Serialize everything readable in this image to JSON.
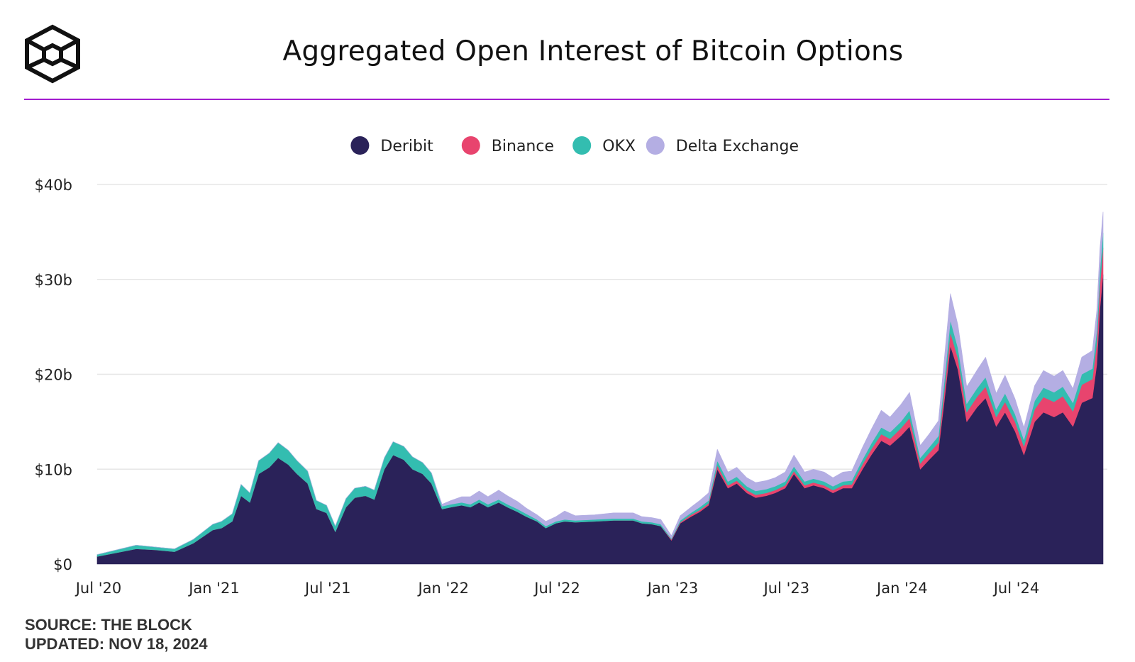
{
  "header": {
    "logo_icon": "the-block-cube-logo-icon",
    "title": "Aggregated Open Interest of Bitcoin Options",
    "accent_color": "#A21CCF"
  },
  "footer": {
    "source": "SOURCE: THE BLOCK",
    "updated": "UPDATED: NOV 18, 2024"
  },
  "chart_data": {
    "type": "area",
    "stacked": true,
    "legend_position": "top-center",
    "grid": "horizontal",
    "ylim": [
      0,
      40
    ],
    "y_ticks": [
      0,
      10,
      20,
      30,
      40
    ],
    "y_tick_labels": [
      "$0",
      "$10b",
      "$20b",
      "$30b",
      "$40b"
    ],
    "x_range": [
      "2020-07-01",
      "2024-11-18"
    ],
    "x_ticks": [
      "2020-07-01",
      "2021-01-01",
      "2021-07-01",
      "2022-01-01",
      "2022-07-01",
      "2023-01-01",
      "2023-07-01",
      "2024-01-01",
      "2024-07-01"
    ],
    "x_tick_labels": [
      "Jul '20",
      "Jan '21",
      "Jul '21",
      "Jan '22",
      "Jul '22",
      "Jan '23",
      "Jul '23",
      "Jan '24",
      "Jul '24"
    ],
    "x": [
      "2020-07-01",
      "2020-08-01",
      "2020-09-01",
      "2020-10-01",
      "2020-11-01",
      "2020-12-01",
      "2021-01-01",
      "2021-01-15",
      "2021-02-01",
      "2021-02-15",
      "2021-03-01",
      "2021-03-15",
      "2021-04-01",
      "2021-04-15",
      "2021-05-01",
      "2021-05-15",
      "2021-06-01",
      "2021-06-15",
      "2021-07-01",
      "2021-07-15",
      "2021-08-01",
      "2021-08-15",
      "2021-09-01",
      "2021-09-15",
      "2021-10-01",
      "2021-10-15",
      "2021-11-01",
      "2021-11-15",
      "2021-12-01",
      "2021-12-15",
      "2022-01-01",
      "2022-01-15",
      "2022-02-01",
      "2022-02-15",
      "2022-03-01",
      "2022-03-15",
      "2022-04-01",
      "2022-04-15",
      "2022-05-01",
      "2022-05-15",
      "2022-06-01",
      "2022-06-15",
      "2022-07-01",
      "2022-07-15",
      "2022-08-01",
      "2022-09-01",
      "2022-10-01",
      "2022-11-01",
      "2022-11-15",
      "2022-12-01",
      "2022-12-15",
      "2023-01-01",
      "2023-01-15",
      "2023-02-01",
      "2023-02-15",
      "2023-03-01",
      "2023-03-15",
      "2023-04-01",
      "2023-04-15",
      "2023-05-01",
      "2023-05-15",
      "2023-06-01",
      "2023-06-15",
      "2023-07-01",
      "2023-07-15",
      "2023-08-01",
      "2023-08-15",
      "2023-09-01",
      "2023-09-15",
      "2023-10-01",
      "2023-10-15",
      "2023-11-01",
      "2023-11-15",
      "2023-12-01",
      "2023-12-15",
      "2024-01-01",
      "2024-01-15",
      "2024-02-01",
      "2024-02-15",
      "2024-03-01",
      "2024-03-10",
      "2024-03-20",
      "2024-04-01",
      "2024-04-15",
      "2024-05-01",
      "2024-05-15",
      "2024-06-01",
      "2024-06-15",
      "2024-07-01",
      "2024-07-15",
      "2024-08-01",
      "2024-08-15",
      "2024-09-01",
      "2024-09-15",
      "2024-10-01",
      "2024-10-15",
      "2024-11-01",
      "2024-11-08",
      "2024-11-13",
      "2024-11-18"
    ],
    "series": [
      {
        "name": "Deribit",
        "color": "#2A2259",
        "values": [
          0.8,
          1.2,
          1.6,
          1.5,
          1.3,
          2.2,
          3.6,
          3.8,
          4.5,
          7.2,
          6.5,
          9.5,
          10.2,
          11.2,
          10.5,
          9.5,
          8.5,
          5.8,
          5.4,
          3.4,
          6.0,
          7.0,
          7.2,
          6.8,
          10.0,
          11.5,
          11.0,
          10.0,
          9.5,
          8.5,
          5.8,
          6.0,
          6.2,
          6.0,
          6.5,
          6.0,
          6.5,
          6.0,
          5.5,
          5.0,
          4.5,
          3.8,
          4.3,
          4.5,
          4.4,
          4.5,
          4.6,
          4.6,
          4.3,
          4.2,
          4.0,
          2.5,
          4.3,
          5.0,
          5.5,
          6.2,
          10.0,
          8.0,
          8.5,
          7.5,
          7.0,
          7.2,
          7.5,
          8.0,
          9.5,
          8.0,
          8.3,
          8.0,
          7.5,
          8.0,
          8.0,
          10.0,
          11.5,
          13.0,
          12.5,
          13.5,
          14.5,
          10.0,
          11.0,
          12.0,
          17.0,
          23.0,
          20.5,
          15.0,
          16.5,
          17.5,
          14.5,
          16.0,
          14.0,
          11.5,
          15.0,
          16.0,
          15.5,
          16.0,
          14.5,
          17.0,
          17.5,
          21.0,
          27.0,
          30.5
        ]
      },
      {
        "name": "Binance",
        "color": "#E8446E",
        "values": [
          0,
          0,
          0,
          0,
          0,
          0,
          0,
          0,
          0,
          0,
          0,
          0,
          0,
          0,
          0,
          0,
          0,
          0,
          0,
          0,
          0,
          0,
          0,
          0,
          0,
          0,
          0,
          0,
          0,
          0,
          0,
          0,
          0,
          0,
          0,
          0,
          0,
          0,
          0,
          0,
          0,
          0,
          0,
          0,
          0,
          0,
          0,
          0,
          0,
          0,
          0,
          0.1,
          0.1,
          0.2,
          0.2,
          0.2,
          0.4,
          0.3,
          0.3,
          0.3,
          0.3,
          0.3,
          0.3,
          0.3,
          0.3,
          0.3,
          0.3,
          0.3,
          0.3,
          0.3,
          0.4,
          0.5,
          0.6,
          0.7,
          0.7,
          0.8,
          0.9,
          0.6,
          0.7,
          0.8,
          1.1,
          1.4,
          1.2,
          1.0,
          1.1,
          1.2,
          1.0,
          1.1,
          1.0,
          0.9,
          1.3,
          1.6,
          1.6,
          1.7,
          1.6,
          1.9,
          2.0,
          2.3,
          2.5,
          2.8
        ]
      },
      {
        "name": "OKX",
        "color": "#33BDB0",
        "values": [
          0.2,
          0.3,
          0.4,
          0.3,
          0.3,
          0.4,
          0.6,
          0.7,
          0.8,
          1.2,
          1.0,
          1.4,
          1.5,
          1.6,
          1.5,
          1.4,
          1.3,
          0.9,
          0.8,
          0.6,
          0.9,
          1.0,
          1.0,
          1.0,
          1.2,
          1.4,
          1.4,
          1.3,
          1.2,
          1.1,
          0.3,
          0.3,
          0.3,
          0.3,
          0.3,
          0.3,
          0.3,
          0.3,
          0.3,
          0.3,
          0.2,
          0.2,
          0.2,
          0.2,
          0.2,
          0.2,
          0.2,
          0.2,
          0.2,
          0.2,
          0.2,
          0.1,
          0.2,
          0.2,
          0.3,
          0.3,
          0.5,
          0.4,
          0.4,
          0.4,
          0.4,
          0.4,
          0.4,
          0.4,
          0.5,
          0.4,
          0.4,
          0.4,
          0.4,
          0.4,
          0.4,
          0.5,
          0.6,
          0.7,
          0.7,
          0.7,
          0.8,
          0.6,
          0.6,
          0.7,
          1.0,
          1.3,
          1.1,
          0.9,
          0.9,
          1.0,
          0.8,
          0.9,
          0.8,
          0.7,
          0.9,
          1.0,
          1.0,
          1.0,
          0.9,
          1.1,
          1.1,
          1.3,
          1.5,
          1.6
        ]
      },
      {
        "name": "Delta Exchange",
        "color": "#B4AEE3",
        "values": [
          0,
          0,
          0,
          0,
          0,
          0,
          0,
          0,
          0,
          0,
          0,
          0,
          0,
          0,
          0,
          0,
          0,
          0,
          0,
          0,
          0,
          0,
          0,
          0,
          0,
          0,
          0,
          0,
          0,
          0,
          0.2,
          0.4,
          0.6,
          0.8,
          0.9,
          0.8,
          1.0,
          0.9,
          0.8,
          0.6,
          0.5,
          0.5,
          0.5,
          0.9,
          0.5,
          0.5,
          0.6,
          0.6,
          0.5,
          0.5,
          0.5,
          0.3,
          0.5,
          0.6,
          0.7,
          0.8,
          1.2,
          1.0,
          1.0,
          0.9,
          0.9,
          0.9,
          0.9,
          1.0,
          1.2,
          1.0,
          1.0,
          1.0,
          0.9,
          1.0,
          1.0,
          1.3,
          1.5,
          1.8,
          1.6,
          1.8,
          1.9,
          1.3,
          1.4,
          1.6,
          2.3,
          2.8,
          2.4,
          1.8,
          1.9,
          2.1,
          1.7,
          1.9,
          1.6,
          1.3,
          1.6,
          1.8,
          1.7,
          1.7,
          1.5,
          1.8,
          1.9,
          2.1,
          2.3,
          2.2
        ]
      }
    ]
  }
}
